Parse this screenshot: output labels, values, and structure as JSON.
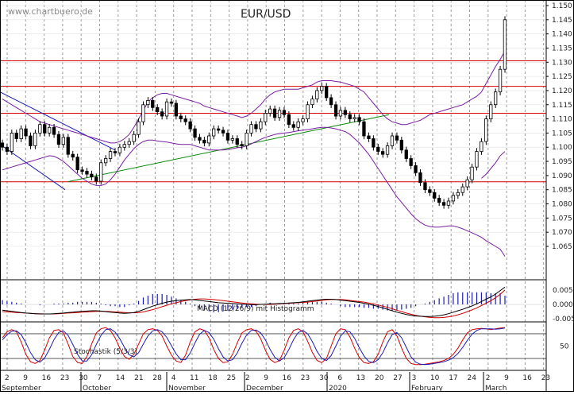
{
  "brand": "www.chartbuero.de",
  "colors": {
    "candle_up": "#ffffff",
    "candle_down": "#000000",
    "bollinger": "#7a1fa2",
    "support_lines": "#d40000",
    "trend_channel": "#1c1cb4",
    "trend_line": "#0a8a0a",
    "macd_line": "#000000",
    "signal_line": "#d40000",
    "histogram": "#1c1cb4",
    "stoch_k": "#d40000",
    "stoch_d": "#1c1cb4",
    "grid": "#9a9a9a"
  },
  "chart_data": [
    {
      "type": "candlestick",
      "title": "EUR/USD",
      "ylim": [
        1.0575,
        1.1505
      ],
      "yticks": [
        "1.150",
        "1.145",
        "1.140",
        "1.135",
        "1.130",
        "1.125",
        "1.120",
        "1.115",
        "1.110",
        "1.105",
        "1.100",
        "1.095",
        "1.090",
        "1.085",
        "1.080",
        "1.075",
        "1.070",
        "1.065"
      ],
      "horizontal_lines": [
        1.1305,
        1.1215,
        1.112,
        1.0878
      ],
      "x_ticks": [
        "2",
        "9",
        "16",
        "23",
        "30",
        "7",
        "14",
        "21",
        "28",
        "4",
        "11",
        "18",
        "25",
        "2",
        "9",
        "16",
        "23",
        "30",
        "6",
        "13",
        "20",
        "27",
        "3",
        "10",
        "17",
        "24",
        "2",
        "9",
        "16",
        "23"
      ],
      "months": [
        "September",
        "October",
        "November",
        "December",
        "2020",
        "February",
        "March"
      ],
      "close": [
        1.1,
        1.0985,
        1.105,
        1.103,
        1.1065,
        1.104,
        1.1005,
        1.105,
        1.108,
        1.105,
        1.107,
        1.1045,
        1.101,
        1.1035,
        1.0975,
        1.0965,
        1.092,
        1.0915,
        1.0905,
        1.0895,
        1.088,
        1.0945,
        1.096,
        1.0985,
        1.098,
        1.1,
        1.101,
        1.102,
        1.1045,
        1.109,
        1.115,
        1.1165,
        1.114,
        1.1125,
        1.111,
        1.116,
        1.1155,
        1.111,
        1.11,
        1.109,
        1.1065,
        1.1035,
        1.1025,
        1.1015,
        1.104,
        1.1065,
        1.106,
        1.105,
        1.1025,
        1.103,
        1.101,
        1.1005,
        1.105,
        1.108,
        1.1065,
        1.109,
        1.112,
        1.1135,
        1.1105,
        1.113,
        1.1115,
        1.108,
        1.107,
        1.109,
        1.11,
        1.115,
        1.117,
        1.12,
        1.1215,
        1.1175,
        1.115,
        1.111,
        1.113,
        1.1115,
        1.11,
        1.1105,
        1.109,
        1.104,
        1.103,
        1.1,
        1.0985,
        1.0975,
        1.1005,
        1.104,
        1.1025,
        1.099,
        1.096,
        1.0935,
        1.091,
        1.0875,
        1.085,
        1.084,
        1.082,
        1.0805,
        1.0795,
        1.081,
        1.083,
        1.084,
        1.086,
        1.0885,
        1.093,
        1.0985,
        1.102,
        1.11,
        1.115,
        1.1195,
        1.1275,
        1.145
      ],
      "bollinger_upper": [
        1.117,
        1.116,
        1.115,
        1.114,
        1.113,
        1.112,
        1.111,
        1.11,
        1.109,
        1.1085,
        1.108,
        1.1075,
        1.107,
        1.1065,
        1.106,
        1.1055,
        1.105,
        1.1045,
        1.104,
        1.1035,
        1.103,
        1.1025,
        1.102,
        1.1015,
        1.1015,
        1.102,
        1.103,
        1.1045,
        1.107,
        1.11,
        1.113,
        1.116,
        1.1175,
        1.1185,
        1.119,
        1.119,
        1.1185,
        1.118,
        1.1175,
        1.117,
        1.1165,
        1.116,
        1.1155,
        1.1145,
        1.114,
        1.1135,
        1.113,
        1.1125,
        1.112,
        1.1115,
        1.111,
        1.1105,
        1.111,
        1.112,
        1.1135,
        1.115,
        1.117,
        1.1185,
        1.1195,
        1.12,
        1.1205,
        1.1205,
        1.1205,
        1.1205,
        1.121,
        1.1215,
        1.122,
        1.123,
        1.1235,
        1.1235,
        1.1235,
        1.1232,
        1.123,
        1.1225,
        1.122,
        1.1215,
        1.1205,
        1.1195,
        1.1175,
        1.1155,
        1.1135,
        1.1115,
        1.11,
        1.109,
        1.1085,
        1.108,
        1.108,
        1.1085,
        1.109,
        1.1095,
        1.1105,
        1.1115,
        1.112,
        1.1125,
        1.113,
        1.1135,
        1.114,
        1.1145,
        1.115,
        1.116,
        1.117,
        1.118,
        1.1195,
        1.1225,
        1.1255,
        1.1285,
        1.131,
        1.134
      ],
      "bollinger_lower": [
        1.092,
        1.0925,
        1.093,
        1.0935,
        1.094,
        1.0945,
        1.095,
        1.0955,
        1.096,
        1.0965,
        1.097,
        1.0968,
        1.096,
        1.095,
        1.0935,
        1.092,
        1.0905,
        1.089,
        1.088,
        1.087,
        1.0865,
        1.0865,
        1.087,
        1.0885,
        1.0905,
        1.093,
        1.0955,
        1.0975,
        1.0995,
        1.101,
        1.102,
        1.1025,
        1.1025,
        1.1022,
        1.102,
        1.1018,
        1.1015,
        1.1012,
        1.101,
        1.101,
        1.101,
        1.1005,
        1.1,
        1.0995,
        1.099,
        1.099,
        1.099,
        1.099,
        1.0992,
        1.0995,
        1.0998,
        1.1,
        1.1005,
        1.1012,
        1.102,
        1.1028,
        1.1035,
        1.104,
        1.1045,
        1.1048,
        1.105,
        1.1052,
        1.1055,
        1.1058,
        1.106,
        1.1062,
        1.1065,
        1.1068,
        1.107,
        1.107,
        1.1068,
        1.1065,
        1.106,
        1.1055,
        1.1045,
        1.103,
        1.1015,
        1.0995,
        1.0975,
        1.095,
        1.0925,
        1.09,
        1.0875,
        1.085,
        1.0825,
        1.0805,
        1.0785,
        1.0765,
        1.0748,
        1.0735,
        1.0725,
        1.072,
        1.0718,
        1.0718,
        1.072,
        1.0722,
        1.0722,
        1.0718,
        1.0712,
        1.0705,
        1.0698,
        1.069,
        1.0682,
        1.067,
        1.066,
        1.065,
        1.064,
        1.0615
      ],
      "bollinger_mid_tail": [
        1.089,
        1.0905,
        1.0925,
        1.0945,
        1.097,
        1.0985
      ]
    },
    {
      "type": "line",
      "title": "MACD (12/26/9) mit Histogramm",
      "ylim": [
        -0.0055,
        0.008
      ],
      "yticks": [
        "0.005",
        "0.000",
        "-0.005"
      ],
      "macd": [
        -0.002,
        -0.0022,
        -0.0024,
        -0.0026,
        -0.0028,
        -0.003,
        -0.0031,
        -0.0032,
        -0.0033,
        -0.0033,
        -0.0033,
        -0.0032,
        -0.0031,
        -0.003,
        -0.0028,
        -0.0027,
        -0.0025,
        -0.0024,
        -0.0023,
        -0.0022,
        -0.0022,
        -0.0023,
        -0.0025,
        -0.0027,
        -0.0028,
        -0.003,
        -0.0031,
        -0.003,
        -0.0028,
        -0.0024,
        -0.0018,
        -0.0012,
        -0.0006,
        -0.0001,
        0.0004,
        0.0008,
        0.0011,
        0.0013,
        0.0015,
        0.0016,
        0.0017,
        0.0016,
        0.0014,
        0.0012,
        0.001,
        0.0008,
        0.0006,
        0.0005,
        0.0004,
        0.0003,
        0.0002,
        0.0001,
        0.0,
        -0.0001,
        -0.0001,
        0.0,
        0.0001,
        0.0002,
        0.0002,
        0.0003,
        0.0004,
        0.0005,
        0.0006,
        0.0007,
        0.0009,
        0.0011,
        0.0013,
        0.0015,
        0.0017,
        0.0018,
        0.0018,
        0.0017,
        0.0015,
        0.0013,
        0.0011,
        0.0009,
        0.0007,
        0.0004,
        0.0001,
        -0.0003,
        -0.0007,
        -0.0012,
        -0.0017,
        -0.0022,
        -0.0027,
        -0.0031,
        -0.0035,
        -0.0038,
        -0.004,
        -0.0041,
        -0.0042,
        -0.0042,
        -0.0041,
        -0.0039,
        -0.0036,
        -0.0032,
        -0.0027,
        -0.0022,
        -0.0017,
        -0.0011,
        -0.0005,
        0.0002,
        0.001,
        0.0018,
        0.0026,
        0.0036,
        0.0048,
        0.006
      ],
      "signal": [
        -0.0025,
        -0.0026,
        -0.0027,
        -0.0028,
        -0.0029,
        -0.003,
        -0.0031,
        -0.0032,
        -0.0032,
        -0.0033,
        -0.0033,
        -0.0033,
        -0.0032,
        -0.0031,
        -0.003,
        -0.0029,
        -0.0028,
        -0.0027,
        -0.0026,
        -0.0025,
        -0.0024,
        -0.0024,
        -0.0024,
        -0.0025,
        -0.0026,
        -0.0027,
        -0.0028,
        -0.0029,
        -0.0029,
        -0.0028,
        -0.0026,
        -0.0022,
        -0.0018,
        -0.0013,
        -0.0008,
        -0.0003,
        0.0002,
        0.0006,
        0.001,
        0.0013,
        0.0016,
        0.0018,
        0.0019,
        0.0019,
        0.0018,
        0.0017,
        0.0015,
        0.0013,
        0.0011,
        0.0009,
        0.0007,
        0.0005,
        0.0003,
        0.0002,
        0.0001,
        0.0,
        0.0,
        0.0,
        0.0001,
        0.0002,
        0.0003,
        0.0004,
        0.0005,
        0.0006,
        0.0007,
        0.0008,
        0.001,
        0.0012,
        0.0014,
        0.0016,
        0.0017,
        0.0017,
        0.0017,
        0.0016,
        0.0014,
        0.0012,
        0.001,
        0.0008,
        0.0005,
        0.0002,
        -0.0002,
        -0.0006,
        -0.001,
        -0.0015,
        -0.002,
        -0.0025,
        -0.003,
        -0.0034,
        -0.0038,
        -0.0041,
        -0.0043,
        -0.0045,
        -0.0046,
        -0.0046,
        -0.0045,
        -0.0043,
        -0.004,
        -0.0036,
        -0.0031,
        -0.0025,
        -0.0019,
        -0.0012,
        -0.0004,
        0.0004,
        0.0013,
        0.0023,
        0.0035,
        0.005
      ]
    },
    {
      "type": "line",
      "title": "Stochastik (5/3/3)",
      "ylim": [
        -5,
        105
      ],
      "yticks": [
        "50"
      ],
      "reference_lines": [
        20,
        80
      ],
      "k": [
        70,
        85,
        90,
        85,
        60,
        30,
        12,
        8,
        15,
        40,
        70,
        88,
        90,
        82,
        55,
        25,
        10,
        8,
        25,
        55,
        82,
        92,
        95,
        88,
        70,
        45,
        25,
        18,
        30,
        55,
        80,
        90,
        92,
        88,
        75,
        50,
        28,
        14,
        10,
        28,
        60,
        85,
        92,
        88,
        70,
        42,
        20,
        10,
        12,
        30,
        58,
        82,
        90,
        92,
        86,
        68,
        40,
        18,
        10,
        15,
        40,
        70,
        88,
        92,
        85,
        62,
        35,
        15,
        10,
        20,
        50,
        80,
        92,
        90,
        72,
        45,
        22,
        10,
        8,
        12,
        30,
        60,
        85,
        90,
        75,
        45,
        20,
        8,
        5,
        5,
        6,
        8,
        10,
        12,
        15,
        20,
        30,
        45,
        65,
        82,
        90,
        92,
        93,
        92,
        90,
        92,
        94,
        95
      ],
      "d": [
        65,
        78,
        86,
        87,
        78,
        58,
        34,
        17,
        11,
        21,
        42,
        66,
        83,
        87,
        76,
        54,
        30,
        14,
        14,
        29,
        54,
        76,
        90,
        92,
        84,
        68,
        47,
        29,
        24,
        34,
        55,
        75,
        87,
        90,
        85,
        71,
        51,
        31,
        17,
        17,
        33,
        58,
        79,
        88,
        83,
        67,
        44,
        24,
        14,
        17,
        33,
        57,
        77,
        88,
        89,
        82,
        65,
        42,
        23,
        14,
        22,
        42,
        66,
        83,
        88,
        80,
        61,
        37,
        20,
        15,
        27,
        50,
        74,
        87,
        85,
        69,
        46,
        26,
        13,
        10,
        17,
        34,
        58,
        78,
        83,
        70,
        47,
        24,
        11,
        6,
        5,
        6,
        8,
        10,
        12,
        16,
        22,
        32,
        47,
        64,
        79,
        88,
        92,
        92,
        92,
        91,
        92,
        94
      ]
    }
  ]
}
